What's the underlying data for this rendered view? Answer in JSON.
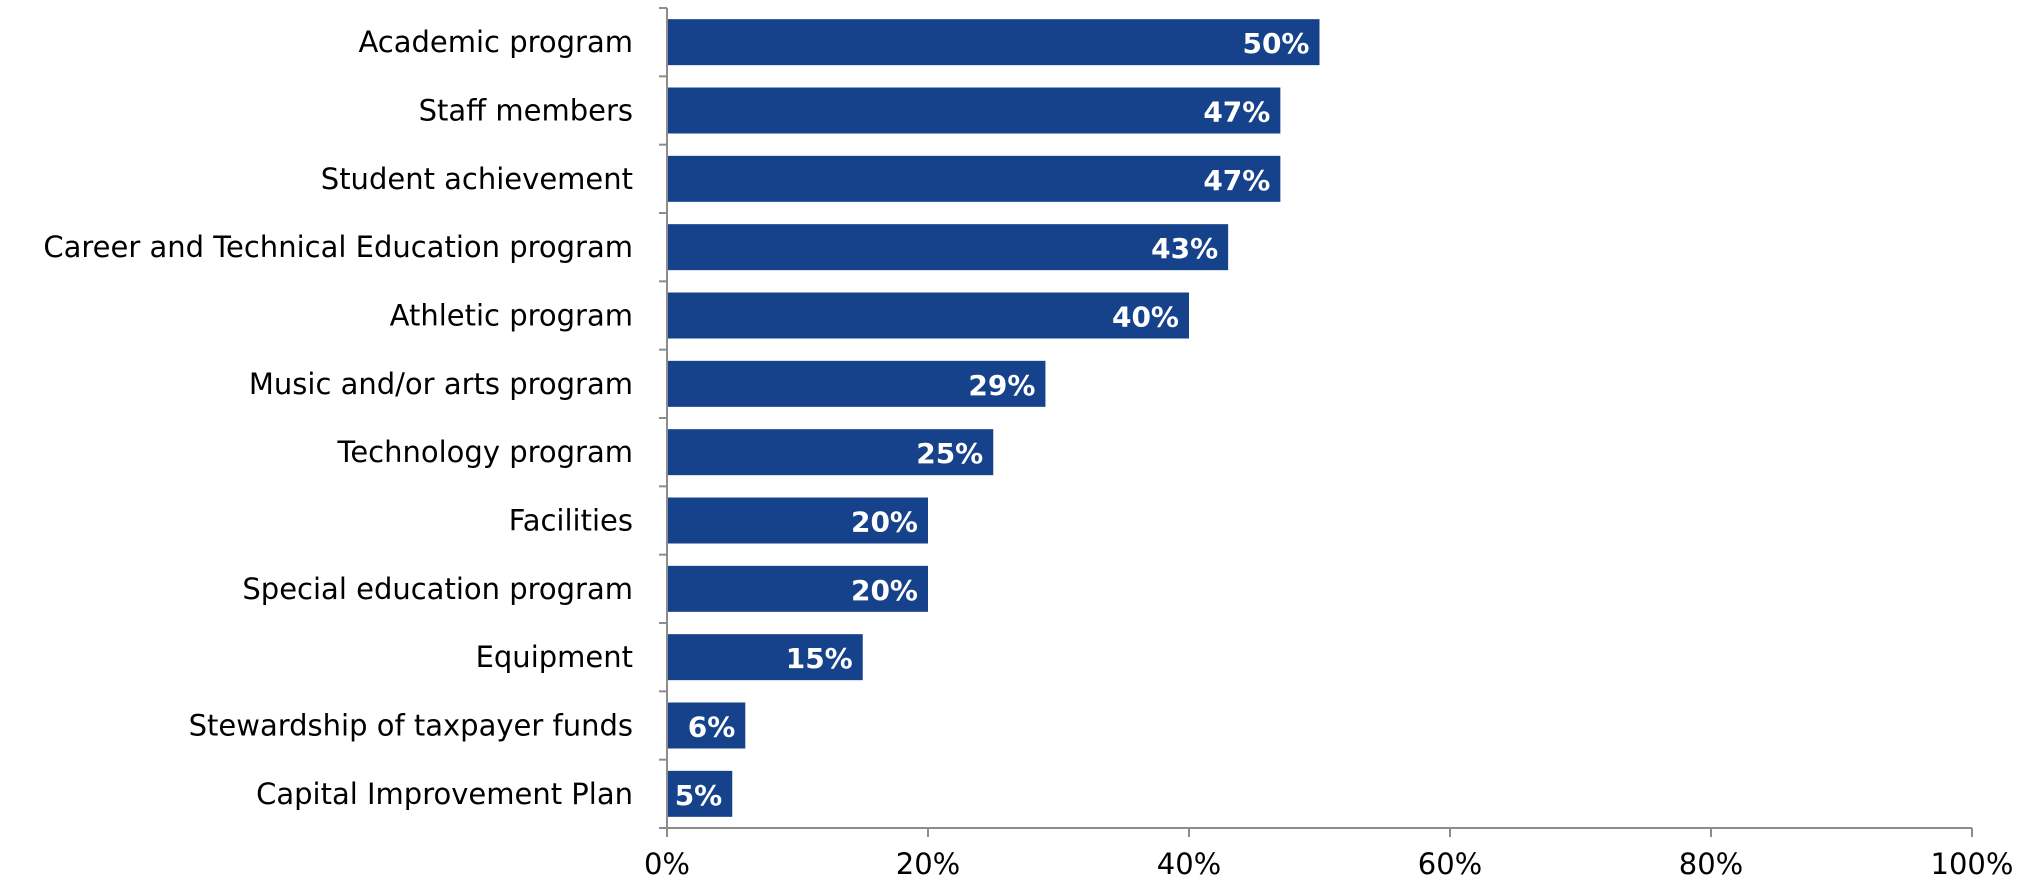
{
  "chart_data": {
    "type": "bar",
    "orientation": "horizontal",
    "categories": [
      "Academic program",
      "Staff members",
      "Student achievement",
      "Career and Technical Education program",
      "Athletic program",
      "Music and/or arts program",
      "Technology program",
      "Facilities",
      "Special education program",
      "Equipment",
      "Stewardship of taxpayer funds",
      "Capital Improvement Plan"
    ],
    "values": [
      50,
      47,
      47,
      43,
      40,
      29,
      25,
      20,
      20,
      15,
      6,
      5
    ],
    "data_labels": [
      "50%",
      "47%",
      "47%",
      "43%",
      "40%",
      "29%",
      "25%",
      "20%",
      "20%",
      "15%",
      "6%",
      "5%"
    ],
    "xlim": [
      0,
      100
    ],
    "x_ticks": [
      0,
      20,
      40,
      60,
      80,
      100
    ],
    "x_tick_labels": [
      "0%",
      "20%",
      "40%",
      "60%",
      "80%",
      "100%"
    ],
    "bar_color": "#16428b",
    "grid": false,
    "legend": "none"
  }
}
